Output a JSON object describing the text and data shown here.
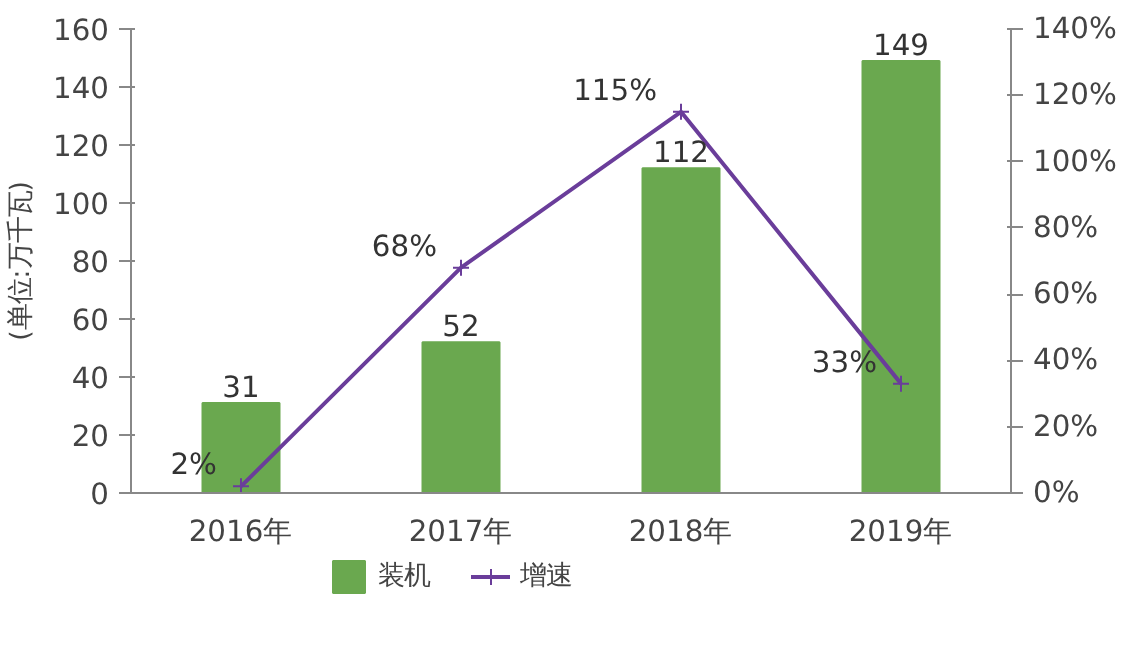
{
  "chart_data": {
    "type": "bar",
    "ylabel": "(单位:万千瓦)",
    "categories": [
      "2016年",
      "2017年",
      "2018年",
      "2019年"
    ],
    "series": [
      {
        "name": "装机",
        "color": "#6aa84f",
        "values": [
          31,
          52,
          112,
          149
        ]
      },
      {
        "name": "增速",
        "type": "line",
        "axis": "y2",
        "color": "#6a3d9a",
        "values": [
          2,
          68,
          115,
          33
        ],
        "value_labels": [
          "2%",
          "68%",
          "115%",
          "33%"
        ],
        "marker": "cross"
      }
    ],
    "data_labels": true,
    "ylim": [
      0,
      160
    ],
    "yticks": [
      0,
      20,
      40,
      60,
      80,
      100,
      120,
      140,
      160
    ],
    "y2lim": [
      0,
      140
    ],
    "y2ticks": [
      {
        "value": 0,
        "label": "0%"
      },
      {
        "value": 20,
        "label": "20%"
      },
      {
        "value": 40,
        "label": "40%"
      },
      {
        "value": 60,
        "label": "60%"
      },
      {
        "value": 80,
        "label": "80%"
      },
      {
        "value": 100,
        "label": "100%"
      },
      {
        "value": 120,
        "label": "120%"
      },
      {
        "value": 140,
        "label": "140%"
      }
    ],
    "grid": false,
    "legend": "bottom"
  }
}
